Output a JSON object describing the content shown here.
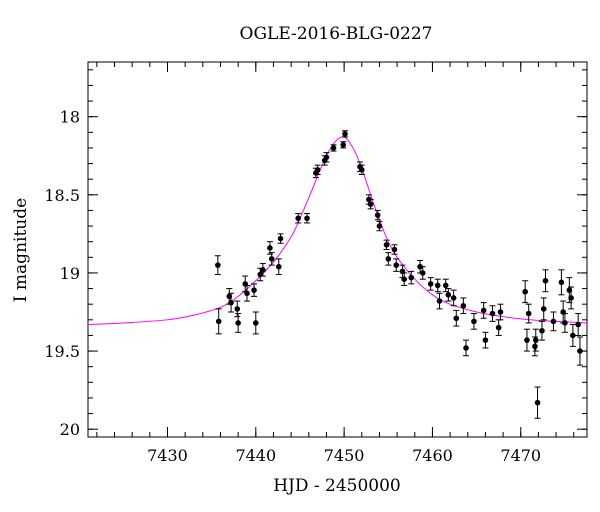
{
  "chart_data": {
    "type": "scatter",
    "title": "OGLE-2016-BLG-0227",
    "xlabel": "HJD - 2450000",
    "ylabel": "I magnitude",
    "xlim": [
      7421,
      7477.5
    ],
    "ylim": [
      17.65,
      20.05
    ],
    "y_inverted": true,
    "grid": false,
    "xticks": [
      7430,
      7440,
      7450,
      7460,
      7470
    ],
    "yticks": [
      18,
      18.5,
      19,
      19.5,
      20
    ],
    "ytick_labels": [
      "18",
      "18.5",
      "19",
      "19.5",
      "20"
    ],
    "colors": {
      "points": "#000000",
      "model": "#ff00ff",
      "axes": "#000000"
    },
    "model_curve": {
      "x": [
        7421,
        7425,
        7430,
        7433,
        7436,
        7438,
        7440,
        7442,
        7444,
        7445,
        7446,
        7447,
        7448,
        7449,
        7450,
        7451,
        7452,
        7453,
        7454,
        7455,
        7456,
        7458,
        7460,
        7462,
        7465,
        7468,
        7471,
        7474,
        7477.5
      ],
      "y": [
        19.33,
        19.32,
        19.3,
        19.27,
        19.22,
        19.15,
        19.05,
        18.93,
        18.77,
        18.65,
        18.52,
        18.38,
        18.25,
        18.16,
        18.13,
        18.2,
        18.33,
        18.5,
        18.66,
        18.8,
        18.9,
        19.04,
        19.14,
        19.2,
        19.25,
        19.28,
        19.3,
        19.31,
        19.32
      ]
    },
    "series": [
      {
        "x": [
          7435.7,
          7435.8,
          7437.0,
          7437.2,
          7437.9,
          7438.0,
          7438.8,
          7439.0,
          7439.8,
          7440.0,
          7440.5,
          7440.8,
          7441.6,
          7441.8,
          7442.6,
          7442.8,
          7444.8,
          7445.8,
          7446.8,
          7447.0,
          7447.8,
          7448.0,
          7448.8,
          7449.9,
          7450.1,
          7451.8,
          7452.0,
          7452.8,
          7453.0,
          7453.8,
          7454.0,
          7454.8,
          7455.0,
          7455.7,
          7455.9,
          7456.6,
          7456.8,
          7457.6,
          7458.6,
          7458.9,
          7459.8,
          7460.6,
          7460.8,
          7461.5,
          7461.8,
          7462.4,
          7462.7,
          7463.5,
          7463.8,
          7464.7,
          7465.8,
          7466.0,
          7466.8,
          7467.5,
          7467.7,
          7470.5,
          7470.7,
          7470.9,
          7471.6,
          7471.7,
          7471.9,
          7472.4,
          7472.6,
          7472.8,
          7473.7,
          7474.6,
          7474.8,
          7475.0,
          7475.5,
          7475.7,
          7475.9,
          7476.5,
          7476.7
        ],
        "y": [
          18.95,
          19.31,
          19.15,
          19.19,
          19.23,
          19.32,
          19.07,
          19.13,
          19.11,
          19.32,
          19.01,
          18.98,
          18.84,
          18.91,
          18.96,
          18.78,
          18.65,
          18.65,
          18.36,
          18.34,
          18.28,
          18.26,
          18.2,
          18.18,
          18.11,
          18.32,
          18.34,
          18.53,
          18.56,
          18.63,
          18.7,
          18.82,
          18.91,
          18.85,
          18.95,
          18.99,
          19.04,
          19.03,
          18.96,
          19.0,
          19.07,
          19.08,
          19.18,
          19.08,
          19.14,
          19.16,
          19.29,
          19.21,
          19.48,
          19.31,
          19.24,
          19.43,
          19.26,
          19.35,
          19.25,
          19.12,
          19.43,
          19.26,
          19.47,
          19.43,
          19.83,
          19.37,
          19.23,
          19.05,
          19.31,
          19.06,
          19.25,
          19.32,
          19.11,
          19.16,
          19.4,
          19.33,
          19.5
        ],
        "err": [
          0.06,
          0.08,
          0.05,
          0.06,
          0.05,
          0.06,
          0.05,
          0.05,
          0.04,
          0.07,
          0.04,
          0.04,
          0.04,
          0.04,
          0.05,
          0.03,
          0.03,
          0.03,
          0.03,
          0.03,
          0.03,
          0.03,
          0.02,
          0.02,
          0.02,
          0.03,
          0.03,
          0.03,
          0.03,
          0.03,
          0.03,
          0.03,
          0.04,
          0.03,
          0.04,
          0.04,
          0.04,
          0.04,
          0.04,
          0.04,
          0.04,
          0.04,
          0.05,
          0.04,
          0.04,
          0.05,
          0.05,
          0.05,
          0.05,
          0.05,
          0.05,
          0.05,
          0.05,
          0.05,
          0.05,
          0.07,
          0.07,
          0.06,
          0.06,
          0.07,
          0.1,
          0.06,
          0.07,
          0.07,
          0.06,
          0.08,
          0.07,
          0.06,
          0.08,
          0.07,
          0.07,
          0.07,
          0.09
        ]
      }
    ]
  }
}
